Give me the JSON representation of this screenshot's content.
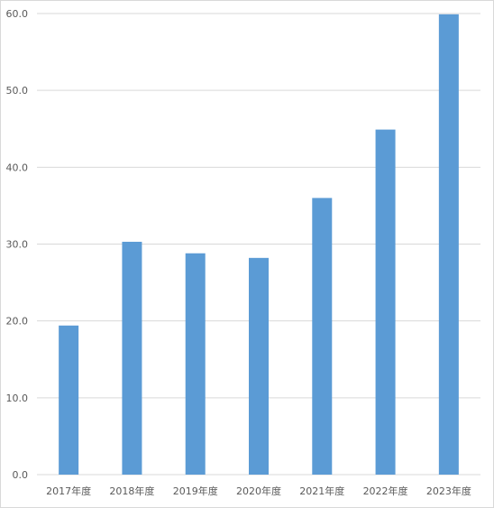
{
  "chart_data": {
    "type": "bar",
    "title": "",
    "xlabel": "",
    "ylabel": "",
    "categories": [
      "2017年度",
      "2018年度",
      "2019年度",
      "2020年度",
      "2021年度",
      "2022年度",
      "2023年度"
    ],
    "values": [
      19.4,
      30.3,
      28.8,
      28.2,
      36.0,
      44.9,
      59.9
    ],
    "ylim": [
      0,
      60
    ],
    "yticks": [
      "0.0",
      "10.0",
      "20.0",
      "30.0",
      "40.0",
      "50.0",
      "60.0"
    ],
    "grid": true,
    "legend": "none",
    "bar_color": "#5B9BD5"
  }
}
